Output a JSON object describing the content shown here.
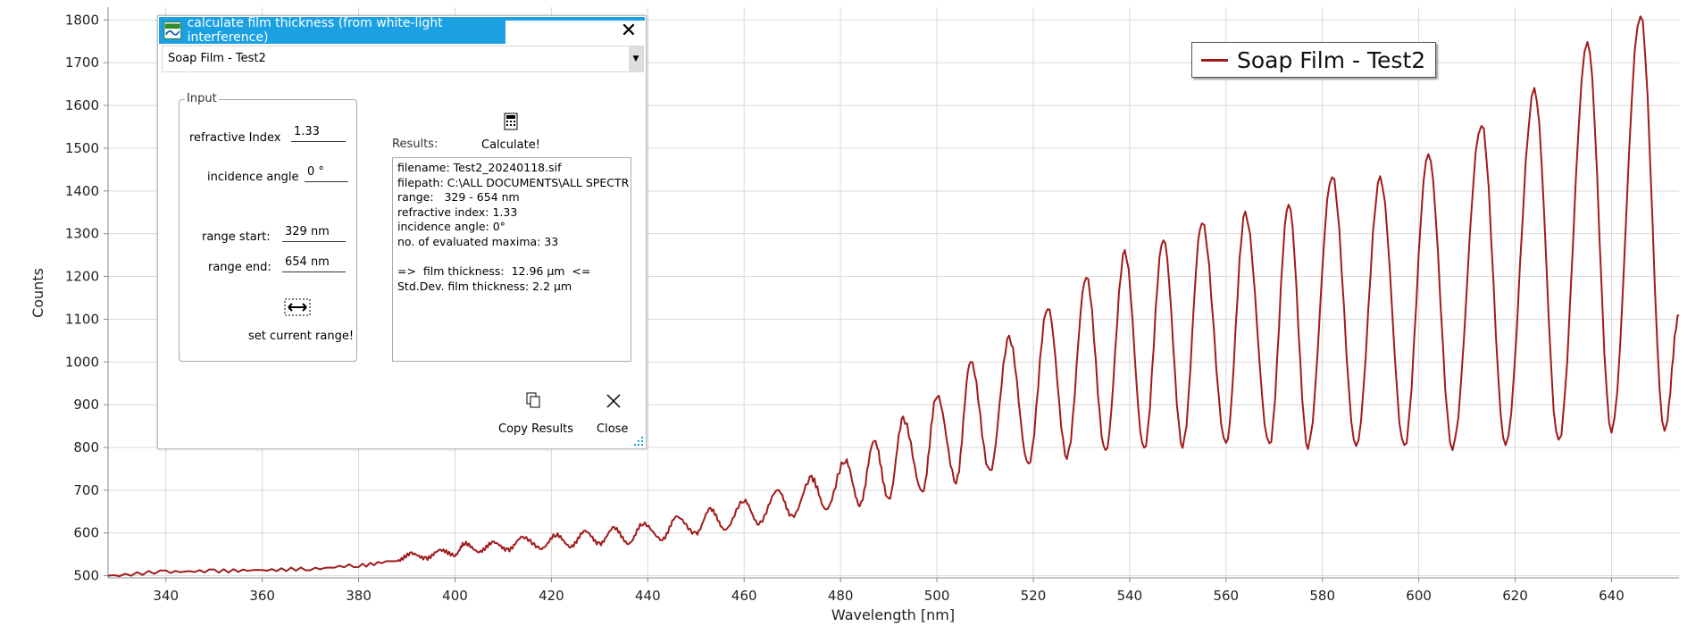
{
  "chart_data": {
    "type": "line",
    "xlabel": "Wavelength [nm]",
    "ylabel": "Counts",
    "xlim": [
      328,
      654
    ],
    "ylim": [
      495,
      1830
    ],
    "xticks": [
      340,
      360,
      380,
      400,
      420,
      440,
      460,
      480,
      500,
      520,
      540,
      560,
      580,
      600,
      620,
      640
    ],
    "yticks": [
      500,
      600,
      700,
      800,
      900,
      1000,
      1100,
      1200,
      1300,
      1400,
      1500,
      1600,
      1700,
      1800
    ],
    "grid": true,
    "legend_position": "top-right",
    "series": [
      {
        "name": "Soap Film - Test2",
        "color": "#a01b1b",
        "maxima": [
          [
            391,
            552
          ],
          [
            397,
            560
          ],
          [
            402,
            576
          ],
          [
            408,
            578
          ],
          [
            414,
            590
          ],
          [
            421,
            596
          ],
          [
            427,
            604
          ],
          [
            433,
            612
          ],
          [
            439,
            622
          ],
          [
            446,
            638
          ],
          [
            453,
            656
          ],
          [
            460,
            676
          ],
          [
            467,
            700
          ],
          [
            474,
            728
          ],
          [
            481,
            770
          ],
          [
            487,
            816
          ],
          [
            493,
            866
          ],
          [
            500,
            922
          ],
          [
            507,
            1002
          ],
          [
            515,
            1055
          ],
          [
            523,
            1128
          ],
          [
            531,
            1200
          ],
          [
            539,
            1255
          ],
          [
            547,
            1288
          ],
          [
            555,
            1328
          ],
          [
            564,
            1345
          ],
          [
            573,
            1370
          ],
          [
            582,
            1437
          ],
          [
            592,
            1428
          ],
          [
            602,
            1487
          ],
          [
            613,
            1558
          ],
          [
            624,
            1635
          ],
          [
            635,
            1748
          ],
          [
            646,
            1815
          ]
        ],
        "minima": [
          [
            394,
            540
          ],
          [
            400,
            548
          ],
          [
            405,
            556
          ],
          [
            411,
            560
          ],
          [
            418,
            564
          ],
          [
            424,
            568
          ],
          [
            430,
            574
          ],
          [
            436,
            575
          ],
          [
            443,
            585
          ],
          [
            450,
            598
          ],
          [
            456,
            608
          ],
          [
            463,
            622
          ],
          [
            470,
            638
          ],
          [
            477,
            655
          ],
          [
            484,
            666
          ],
          [
            490,
            678
          ],
          [
            497,
            696
          ],
          [
            504,
            722
          ],
          [
            511,
            743
          ],
          [
            519,
            760
          ],
          [
            527,
            780
          ],
          [
            535,
            790
          ],
          [
            543,
            796
          ],
          [
            551,
            806
          ],
          [
            560,
            808
          ],
          [
            569,
            805
          ],
          [
            577,
            803
          ],
          [
            587,
            802
          ],
          [
            597,
            800
          ],
          [
            607,
            800
          ],
          [
            618,
            805
          ],
          [
            629,
            812
          ],
          [
            640,
            840
          ],
          [
            651,
            840
          ]
        ]
      }
    ]
  },
  "legend": {
    "label": "Soap Film - Test2"
  },
  "dialog": {
    "title": "calculate film thickness (from white-light interference)",
    "selected_dataset": "Soap Film - Test2",
    "input_group_label": "Input",
    "refractive_index_label": "refractive Index",
    "refractive_index_value": "1.33",
    "incidence_angle_label": "incidence angle",
    "incidence_angle_value": "0 °",
    "range_start_label": "range start:",
    "range_start_value": "329 nm",
    "range_end_label": "range end:",
    "range_end_value": "654 nm",
    "set_range_label": "set current range!",
    "results_label": "Results:",
    "calculate_label": "Calculate!",
    "results_text": "filename: Test2_20240118.sif\nfilepath: C:\\ALL DOCUMENTS\\ALL SPECTR\nrange:   329 - 654 nm\nrefractive index: 1.33\nincidence angle: 0°\nno. of evaluated maxima: 33\n\n=>  film thickness:  12.96 µm  <=\nStd.Dev. film thickness: 2.2 µm",
    "copy_label": "Copy Results",
    "close_label": "Close"
  }
}
